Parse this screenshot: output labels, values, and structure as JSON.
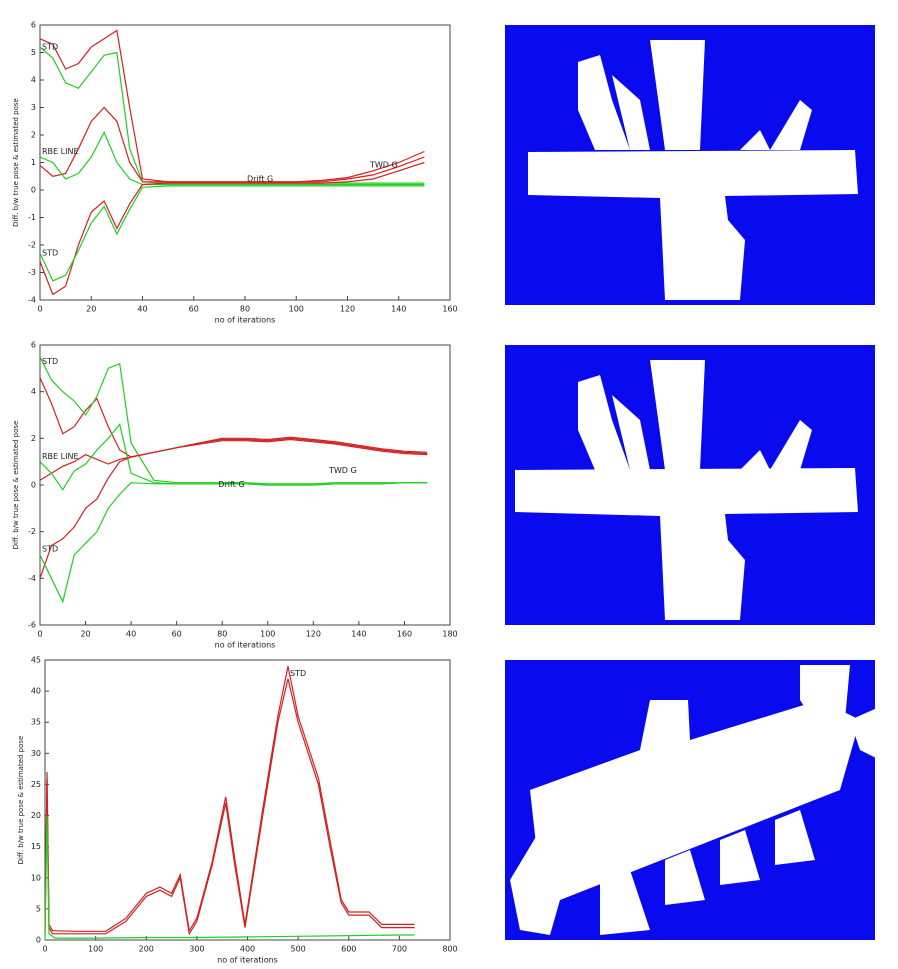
{
  "chart_data": [
    {
      "type": "line",
      "xlabel": "no of iterations",
      "ylabel": "Diff. b/w true pose & estimated pose",
      "xlim": [
        0,
        160
      ],
      "xticks": [
        0,
        20,
        40,
        60,
        80,
        100,
        120,
        140,
        160
      ],
      "ylim": [
        -4,
        6
      ],
      "yticks": [
        -4,
        -3,
        -2,
        -1,
        0,
        1,
        2,
        3,
        4,
        5,
        6
      ],
      "annotations": [
        "STD",
        "RBE LINE",
        "Drift G",
        "TWD G",
        "STD"
      ],
      "series": [
        {
          "color": "#d42020",
          "x": [
            0,
            5,
            10,
            15,
            20,
            25,
            30,
            35,
            40,
            50,
            60,
            80,
            100,
            110,
            120,
            130,
            140,
            150
          ],
          "values": [
            5.5,
            5.3,
            4.4,
            4.6,
            5.2,
            5.5,
            5.8,
            3.0,
            0.4,
            0.3,
            0.3,
            0.3,
            0.3,
            0.35,
            0.45,
            0.7,
            1.0,
            1.4
          ]
        },
        {
          "color": "#20d020",
          "x": [
            0,
            5,
            10,
            15,
            20,
            25,
            30,
            35,
            40,
            50,
            60,
            80,
            100,
            110,
            120,
            130,
            140,
            150
          ],
          "values": [
            5.2,
            4.8,
            3.9,
            3.7,
            4.3,
            4.9,
            5.0,
            1.5,
            0.3,
            0.25,
            0.25,
            0.25,
            0.25,
            0.25,
            0.25,
            0.25,
            0.25,
            0.25
          ]
        },
        {
          "color": "#d42020",
          "x": [
            0,
            5,
            10,
            15,
            20,
            25,
            30,
            35,
            40,
            50,
            60,
            80,
            100,
            110,
            120,
            130,
            140,
            150
          ],
          "values": [
            0.9,
            0.5,
            0.6,
            1.5,
            2.5,
            3.0,
            2.5,
            1.0,
            0.3,
            0.3,
            0.3,
            0.3,
            0.3,
            0.3,
            0.4,
            0.55,
            0.85,
            1.2
          ]
        },
        {
          "color": "#20d020",
          "x": [
            0,
            5,
            10,
            15,
            20,
            25,
            30,
            35,
            40,
            50,
            60,
            80,
            100,
            110,
            120,
            130,
            140,
            150
          ],
          "values": [
            1.2,
            1.0,
            0.4,
            0.6,
            1.2,
            2.1,
            1.0,
            0.4,
            0.2,
            0.2,
            0.2,
            0.2,
            0.2,
            0.2,
            0.2,
            0.2,
            0.2,
            0.2
          ]
        },
        {
          "color": "#d42020",
          "x": [
            0,
            5,
            10,
            15,
            20,
            25,
            30,
            35,
            40,
            50,
            60,
            80,
            100,
            110,
            120,
            130,
            140,
            150
          ],
          "values": [
            -2.6,
            -3.8,
            -3.5,
            -2.0,
            -0.8,
            -0.4,
            -1.4,
            -0.5,
            0.2,
            0.25,
            0.25,
            0.25,
            0.25,
            0.25,
            0.3,
            0.4,
            0.7,
            1.0
          ]
        },
        {
          "color": "#20d020",
          "x": [
            0,
            5,
            10,
            15,
            20,
            25,
            30,
            35,
            40,
            50,
            60,
            80,
            100,
            110,
            120,
            130,
            140,
            150
          ],
          "values": [
            -2.3,
            -3.3,
            -3.1,
            -2.2,
            -1.2,
            -0.6,
            -1.6,
            -0.7,
            0.1,
            0.15,
            0.15,
            0.15,
            0.15,
            0.15,
            0.15,
            0.15,
            0.15,
            0.15
          ]
        }
      ]
    },
    {
      "type": "line",
      "xlabel": "no of iterations",
      "ylabel": "Diff. b/w true pose & estimated pose",
      "xlim": [
        0,
        180
      ],
      "xticks": [
        0,
        20,
        40,
        60,
        80,
        100,
        120,
        140,
        160,
        180
      ],
      "ylim": [
        -6,
        6
      ],
      "yticks": [
        -6,
        -4,
        -2,
        0,
        2,
        4,
        6
      ],
      "annotations": [
        "STD",
        "RBE LINE",
        "Drift G",
        "TWD G",
        "STD"
      ],
      "series": [
        {
          "color": "#d42020",
          "x": [
            0,
            5,
            10,
            15,
            20,
            25,
            30,
            35,
            40,
            50,
            60,
            70,
            80,
            90,
            100,
            110,
            120,
            130,
            140,
            150,
            160,
            170
          ],
          "values": [
            4.6,
            3.5,
            2.2,
            2.5,
            3.2,
            3.7,
            2.5,
            1.5,
            1.2,
            1.4,
            1.6,
            1.8,
            2.0,
            2.0,
            1.95,
            2.05,
            1.95,
            1.85,
            1.7,
            1.55,
            1.45,
            1.4
          ]
        },
        {
          "color": "#20d020",
          "x": [
            0,
            5,
            10,
            15,
            20,
            25,
            30,
            35,
            40,
            50,
            60,
            70,
            80,
            90,
            100,
            110,
            120,
            130,
            140,
            150,
            160,
            170
          ],
          "values": [
            5.5,
            4.5,
            4.0,
            3.6,
            3.0,
            3.8,
            5.0,
            5.2,
            1.8,
            0.2,
            0.1,
            0.1,
            0.1,
            0.1,
            0.05,
            0.05,
            0.05,
            0.1,
            0.1,
            0.1,
            0.1,
            0.1
          ]
        },
        {
          "color": "#d42020",
          "x": [
            0,
            5,
            10,
            15,
            20,
            25,
            30,
            35,
            40,
            50,
            60,
            70,
            80,
            90,
            100,
            110,
            120,
            130,
            140,
            150,
            160,
            170
          ],
          "values": [
            0.2,
            0.5,
            0.8,
            1.0,
            1.3,
            1.1,
            0.9,
            1.1,
            1.2,
            1.4,
            1.6,
            1.8,
            1.95,
            1.95,
            1.9,
            2.0,
            1.9,
            1.8,
            1.65,
            1.5,
            1.4,
            1.35
          ]
        },
        {
          "color": "#20d020",
          "x": [
            0,
            5,
            10,
            15,
            20,
            25,
            30,
            35,
            40,
            50,
            60,
            70,
            80,
            90,
            100,
            110,
            120,
            130,
            140,
            150,
            160,
            170
          ],
          "values": [
            1.0,
            0.5,
            -0.2,
            0.6,
            0.9,
            1.5,
            2.0,
            2.6,
            0.5,
            0.1,
            0.05,
            0.05,
            0.05,
            0.05,
            0.0,
            0.0,
            0.0,
            0.05,
            0.05,
            0.05,
            0.1,
            0.1
          ]
        },
        {
          "color": "#d42020",
          "x": [
            0,
            5,
            10,
            15,
            20,
            25,
            30,
            35,
            40,
            50,
            60,
            70,
            80,
            90,
            100,
            110,
            120,
            130,
            140,
            150,
            160,
            170
          ],
          "values": [
            -4.0,
            -2.6,
            -2.3,
            -1.8,
            -1.0,
            -0.6,
            0.3,
            1.0,
            1.2,
            1.4,
            1.6,
            1.75,
            1.9,
            1.9,
            1.85,
            1.95,
            1.85,
            1.75,
            1.6,
            1.45,
            1.35,
            1.3
          ]
        },
        {
          "color": "#20d020",
          "x": [
            0,
            5,
            10,
            15,
            20,
            25,
            30,
            35,
            40,
            50,
            60,
            70,
            80,
            90,
            100,
            110,
            120,
            130,
            140,
            150,
            160,
            170
          ],
          "values": [
            -3.0,
            -4.0,
            -5.0,
            -3.0,
            -2.5,
            -2.0,
            -1.0,
            -0.4,
            0.1,
            0.05,
            0.05,
            0.05,
            0.05,
            0.05,
            0.0,
            0.0,
            0.0,
            0.05,
            0.05,
            0.05,
            0.1,
            0.1
          ]
        }
      ]
    },
    {
      "type": "line",
      "xlabel": "no of iterations",
      "ylabel": "Diff. b/w true pose & estimated pose",
      "xlim": [
        0,
        800
      ],
      "xticks": [
        0,
        100,
        200,
        300,
        400,
        500,
        600,
        700,
        800
      ],
      "ylim": [
        0,
        45
      ],
      "yticks": [
        0,
        5,
        10,
        15,
        20,
        25,
        30,
        35,
        40,
        45
      ],
      "annotations": [
        "STD"
      ],
      "series": [
        {
          "color": "#d42020",
          "x": [
            0,
            4,
            8,
            15,
            60,
            120,
            160,
            200,
            227,
            250,
            267,
            285,
            300,
            330,
            357,
            375,
            395,
            430,
            460,
            480,
            500,
            540,
            563,
            585,
            600,
            640,
            665,
            700,
            730
          ],
          "values": [
            1,
            27,
            2,
            1,
            1,
            1,
            3,
            7,
            8,
            7,
            10,
            1,
            3,
            12,
            22,
            12,
            2,
            20,
            35,
            42,
            35,
            25,
            15,
            6,
            4,
            4,
            2,
            2,
            2
          ]
        },
        {
          "color": "#d42020",
          "x": [
            0,
            4,
            8,
            15,
            60,
            120,
            160,
            200,
            227,
            250,
            267,
            285,
            300,
            330,
            357,
            375,
            395,
            430,
            460,
            480,
            500,
            540,
            563,
            585,
            600,
            640,
            665,
            700,
            730
          ],
          "values": [
            1.5,
            26,
            2.5,
            1.5,
            1.4,
            1.4,
            3.5,
            7.5,
            8.5,
            7.5,
            10.5,
            1.5,
            3.5,
            12.5,
            23,
            13,
            2.5,
            21,
            36,
            44,
            36,
            26,
            16,
            6.5,
            4.5,
            4.5,
            2.5,
            2.5,
            2.5
          ]
        },
        {
          "color": "#20d020",
          "x": [
            0,
            4,
            8,
            20,
            100,
            200,
            300,
            400,
            500,
            600,
            700,
            730
          ],
          "values": [
            0,
            20,
            1,
            0.3,
            0.3,
            0.4,
            0.4,
            0.5,
            0.6,
            0.7,
            0.8,
            0.8
          ]
        }
      ]
    }
  ]
}
